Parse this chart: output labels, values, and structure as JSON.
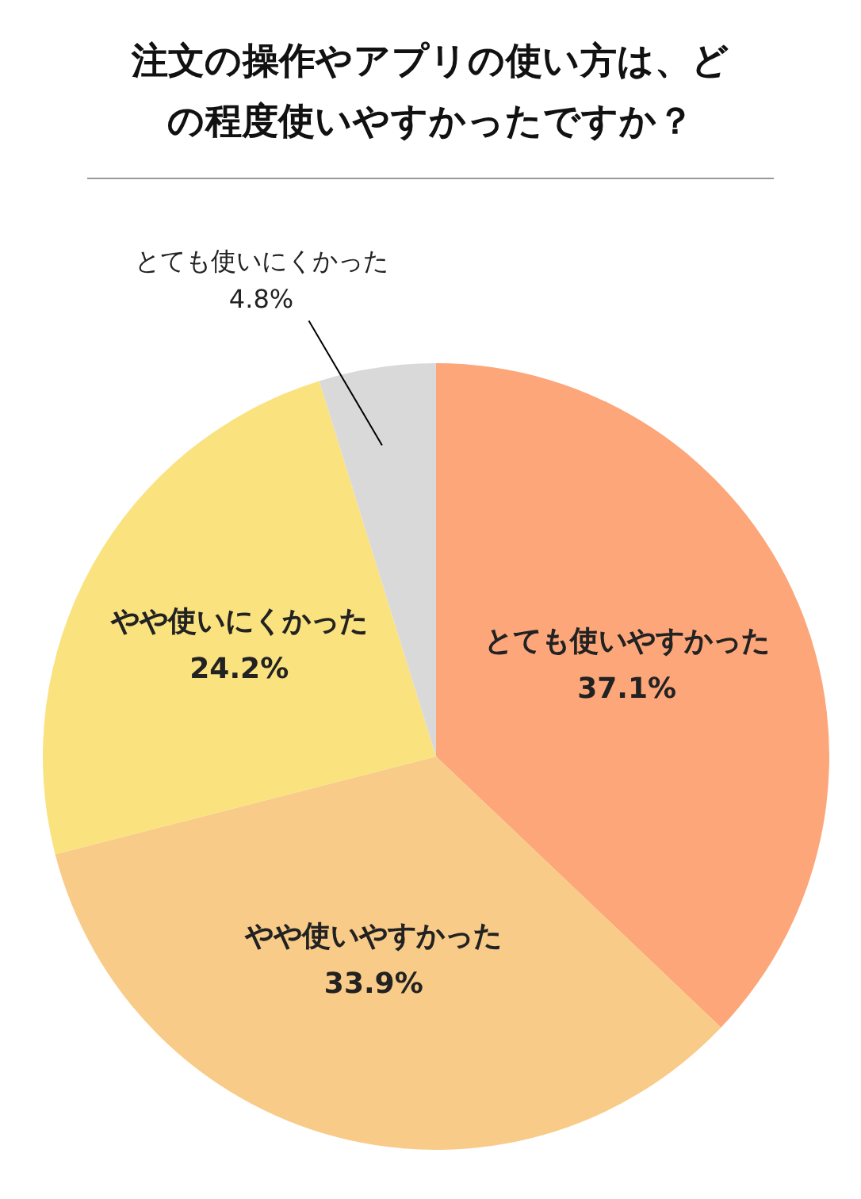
{
  "chart_data": {
    "type": "pie",
    "title": "注文の操作やアプリの使い方は、どの程度使いやすかったですか？",
    "categories": [
      "とても使いやすかった",
      "やや使いやすかった",
      "やや使いにくかった",
      "とても使いにくかった"
    ],
    "values": [
      37.1,
      33.9,
      24.2,
      4.8
    ],
    "value_labels": [
      "37.1%",
      "33.9%",
      "24.2%",
      "4.8%"
    ],
    "colors": [
      "#fca67a",
      "#f9cb88",
      "#fae27f",
      "#d9d9d9"
    ]
  }
}
